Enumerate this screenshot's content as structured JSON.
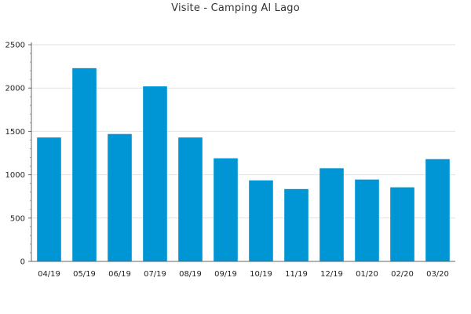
{
  "chart_data": {
    "type": "bar",
    "title": "Visite - Camping Al Lago",
    "categories": [
      "04/19",
      "05/19",
      "06/19",
      "07/19",
      "08/19",
      "09/19",
      "10/19",
      "11/19",
      "12/19",
      "01/20",
      "02/20",
      "03/20"
    ],
    "values": [
      1430,
      2230,
      1470,
      2020,
      1430,
      1190,
      935,
      835,
      1075,
      945,
      855,
      1180
    ],
    "ylim": [
      0,
      2500
    ],
    "yticks": [
      0,
      500,
      1000,
      1500,
      2000,
      2500
    ],
    "grid": true,
    "legend": "none",
    "bar_color": "#0096d6"
  }
}
